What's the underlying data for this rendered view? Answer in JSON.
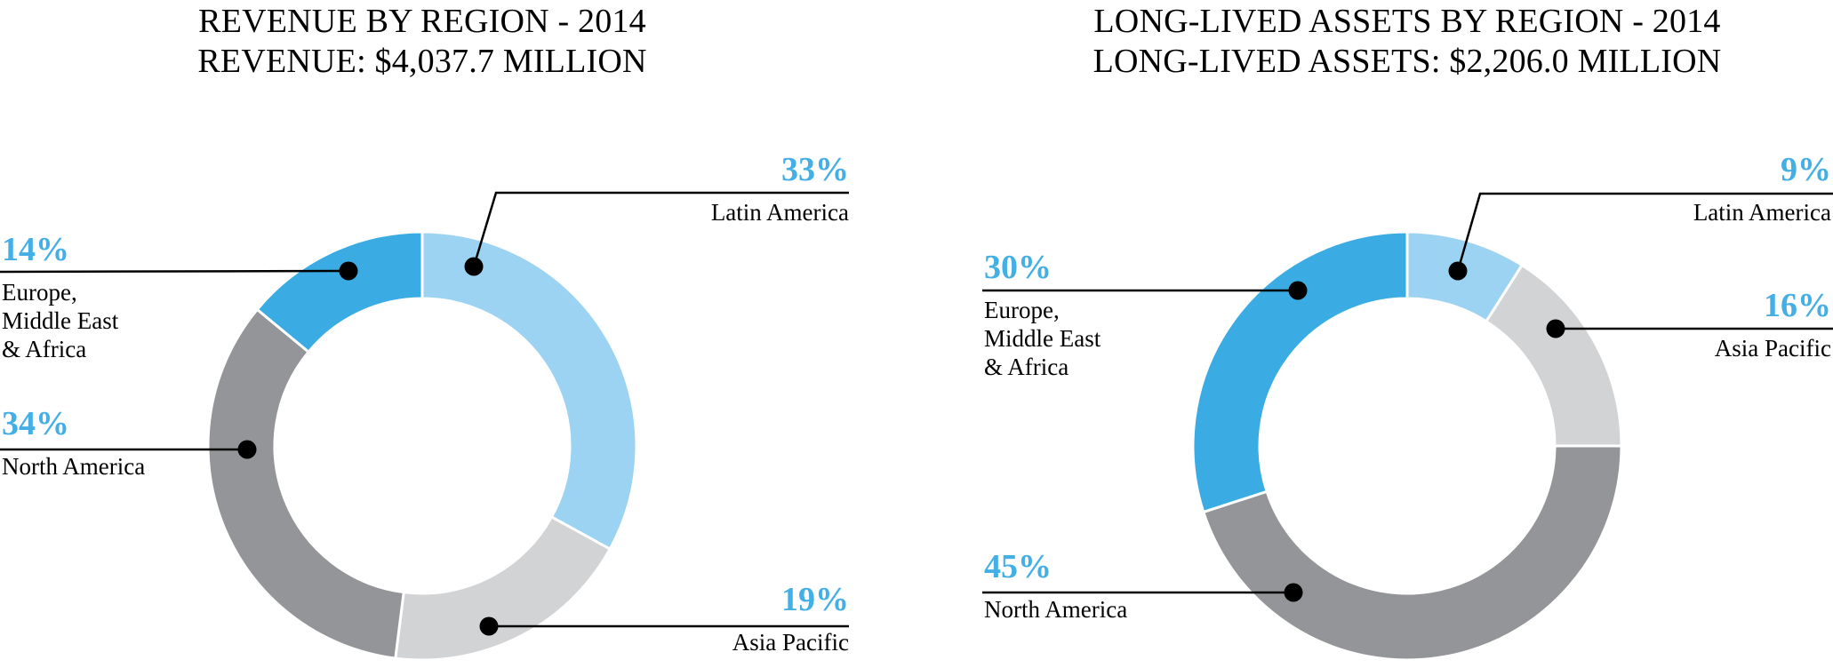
{
  "styles": {
    "accent_blue_text": "#44AFE5",
    "leader_line_color": "#000000",
    "slice_gap_color": "#ffffff",
    "title_color": "#000000",
    "background": "#ffffff"
  },
  "charts": [
    {
      "id": "revenue",
      "title_line1": "REVENUE BY REGION - 2014",
      "title_line2": "REVENUE: $4,037.7 MILLION",
      "chart_data": {
        "type": "pie",
        "subtype": "donut",
        "title": "REVENUE BY REGION - 2014",
        "subtitle": "REVENUE: $4,037.7 MILLION",
        "total_value": "$4,037.7 million",
        "unit": "%",
        "direction": "clockwise",
        "start_angle_deg": 0,
        "legend_position": "callout-labels",
        "categories": [
          "Latin America",
          "Asia Pacific",
          "North America",
          "Europe, Middle East & Africa"
        ],
        "values": [
          33,
          19,
          34,
          14
        ],
        "colors": [
          "#9DD3F2",
          "#D2D3D5",
          "#949598",
          "#3AACE3"
        ]
      },
      "labels": [
        {
          "percent": "33%",
          "region": "Latin America"
        },
        {
          "percent": "19%",
          "region": "Asia Pacific"
        },
        {
          "percent": "34%",
          "region": "North America"
        },
        {
          "percent": "14%",
          "region": "Europe,\nMiddle East\n& Africa"
        }
      ]
    },
    {
      "id": "long-lived-assets",
      "title_line1": "LONG-LIVED ASSETS BY REGION - 2014",
      "title_line2": "LONG-LIVED ASSETS: $2,206.0 MILLION",
      "chart_data": {
        "type": "pie",
        "subtype": "donut",
        "title": "LONG-LIVED ASSETS BY REGION - 2014",
        "subtitle": "LONG-LIVED ASSETS: $2,206.0 MILLION",
        "total_value": "$2,206.0 million",
        "unit": "%",
        "direction": "clockwise",
        "start_angle_deg": 0,
        "legend_position": "callout-labels",
        "categories": [
          "Latin America",
          "Asia Pacific",
          "North America",
          "Europe, Middle East & Africa"
        ],
        "values": [
          9,
          16,
          45,
          30
        ],
        "colors": [
          "#9DD3F2",
          "#D2D3D5",
          "#949598",
          "#3AACE3"
        ]
      },
      "labels": [
        {
          "percent": "9%",
          "region": "Latin America"
        },
        {
          "percent": "16%",
          "region": "Asia Pacific"
        },
        {
          "percent": "45%",
          "region": "North America"
        },
        {
          "percent": "30%",
          "region": "Europe,\nMiddle East\n& Africa"
        }
      ]
    }
  ]
}
